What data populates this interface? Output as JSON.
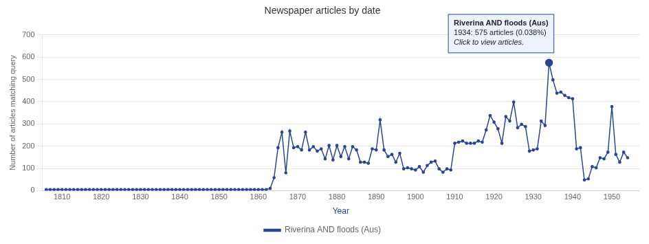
{
  "chart_data": {
    "type": "line",
    "title": "Newspaper articles by date",
    "x_label": "Year",
    "y_label": "Number of articles matching query",
    "x": [
      1806,
      1807,
      1808,
      1809,
      1810,
      1811,
      1812,
      1813,
      1814,
      1815,
      1816,
      1817,
      1818,
      1819,
      1820,
      1821,
      1822,
      1823,
      1824,
      1825,
      1826,
      1827,
      1828,
      1829,
      1830,
      1831,
      1832,
      1833,
      1834,
      1835,
      1836,
      1837,
      1838,
      1839,
      1840,
      1841,
      1842,
      1843,
      1844,
      1845,
      1846,
      1847,
      1848,
      1849,
      1850,
      1851,
      1852,
      1853,
      1854,
      1855,
      1856,
      1857,
      1858,
      1859,
      1860,
      1861,
      1862,
      1863,
      1864,
      1865,
      1866,
      1867,
      1868,
      1869,
      1870,
      1871,
      1872,
      1873,
      1874,
      1875,
      1876,
      1877,
      1878,
      1879,
      1880,
      1881,
      1882,
      1883,
      1884,
      1885,
      1886,
      1887,
      1888,
      1889,
      1890,
      1891,
      1892,
      1893,
      1894,
      1895,
      1896,
      1897,
      1898,
      1899,
      1900,
      1901,
      1902,
      1903,
      1904,
      1905,
      1906,
      1907,
      1908,
      1909,
      1910,
      1911,
      1912,
      1913,
      1914,
      1915,
      1916,
      1917,
      1918,
      1919,
      1920,
      1921,
      1922,
      1923,
      1924,
      1925,
      1926,
      1927,
      1928,
      1929,
      1930,
      1931,
      1932,
      1933,
      1934,
      1935,
      1936,
      1937,
      1938,
      1939,
      1940,
      1941,
      1942,
      1943,
      1944,
      1945,
      1946,
      1947,
      1948,
      1949,
      1950,
      1951,
      1952,
      1953,
      1954
    ],
    "series": [
      {
        "name": "Riverina AND floods (Aus)",
        "color": "#2B4590",
        "marker": "circle",
        "values": [
          5,
          5,
          5,
          5,
          5,
          5,
          5,
          5,
          5,
          5,
          5,
          5,
          5,
          5,
          5,
          5,
          5,
          5,
          5,
          5,
          5,
          5,
          5,
          5,
          5,
          5,
          5,
          5,
          5,
          5,
          5,
          5,
          5,
          5,
          5,
          5,
          5,
          5,
          5,
          5,
          5,
          5,
          5,
          5,
          5,
          5,
          5,
          5,
          5,
          5,
          5,
          5,
          5,
          5,
          5,
          5,
          5,
          10,
          58,
          193,
          263,
          80,
          268,
          193,
          198,
          183,
          263,
          183,
          198,
          178,
          188,
          143,
          203,
          138,
          203,
          153,
          198,
          143,
          198,
          183,
          128,
          128,
          123,
          188,
          183,
          318,
          183,
          153,
          163,
          128,
          168,
          98,
          103,
          98,
          93,
          108,
          83,
          113,
          128,
          133,
          98,
          83,
          98,
          93,
          213,
          218,
          223,
          213,
          213,
          213,
          223,
          218,
          273,
          338,
          308,
          278,
          213,
          333,
          313,
          398,
          283,
          298,
          288,
          178,
          183,
          188,
          313,
          293,
          575,
          498,
          438,
          443,
          428,
          418,
          413,
          188,
          193,
          48,
          53,
          108,
          103,
          148,
          143,
          173,
          378,
          163,
          128,
          173,
          148
        ]
      }
    ],
    "xlim": [
      1805,
      1957
    ],
    "xticks": [
      1810,
      1820,
      1830,
      1840,
      1850,
      1860,
      1870,
      1880,
      1890,
      1900,
      1910,
      1920,
      1930,
      1940,
      1950
    ],
    "ylim": [
      0,
      700
    ],
    "yticks": [
      0,
      100,
      200,
      300,
      400,
      500,
      600,
      700
    ],
    "grid": "y",
    "legend": "bottom",
    "annotations": [
      {
        "x": 1934,
        "y": 575,
        "text": [
          "Riverina AND floods (Aus)",
          "1934: 575 articles (0.038%)",
          "Click to view articles."
        ]
      }
    ]
  }
}
